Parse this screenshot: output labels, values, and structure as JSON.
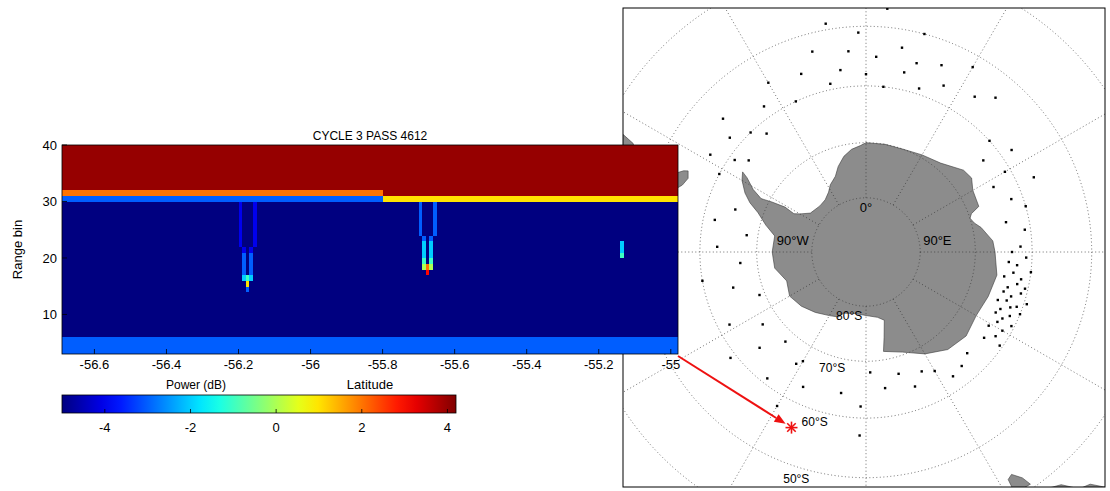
{
  "chart_data": [
    {
      "type": "heatmap",
      "title": "CYCLE 3 PASS 4612",
      "xlabel": "Latitude",
      "ylabel": "Range bin",
      "x_edges": [
        -56.69,
        -56.2,
        -56.19,
        -56.18,
        -56.17,
        -56.16,
        -56.15,
        -55.8,
        -55.7,
        -55.69,
        -55.68,
        -55.67,
        -55.66,
        -55.65,
        -55.15,
        -55.14,
        -55.13,
        -54.98
      ],
      "y_edges": [
        3,
        6,
        14,
        15,
        16,
        17,
        18,
        19,
        20,
        21,
        22,
        23,
        24,
        26,
        28,
        30,
        31,
        32,
        40
      ],
      "cells": [
        [
          -3,
          -3,
          -3,
          -3,
          -3,
          -3,
          -3,
          -3,
          -3,
          -3,
          -3,
          -3,
          -3,
          -3,
          -3,
          -3,
          -3
        ],
        [
          -5,
          -5,
          -5,
          -5,
          -5,
          -5,
          -5,
          -5,
          -5,
          -5,
          -5,
          -5,
          -5,
          -5,
          -5,
          -5,
          -5
        ],
        [
          -5,
          -5,
          -5,
          -3,
          -5,
          -5,
          -5,
          -5,
          -5,
          -5,
          -5,
          -5,
          -5,
          -5,
          -5,
          -5,
          -5
        ],
        [
          -5,
          -5,
          -5,
          1,
          -5,
          -5,
          -5,
          -5,
          -5,
          -5,
          -5,
          -5,
          -5,
          -5,
          -5,
          -5,
          -5
        ],
        [
          -5,
          -5,
          -2,
          -1,
          -2,
          -5,
          -5,
          -5,
          -5,
          -5,
          -5,
          -5,
          -5,
          -5,
          -5,
          -5,
          -5
        ],
        [
          -5,
          -5,
          -3,
          -5,
          -3,
          -5,
          -5,
          -5,
          -5,
          -5,
          3,
          -5,
          -5,
          -5,
          -5,
          -5,
          -5
        ],
        [
          -5,
          -5,
          -3,
          -5,
          -3,
          -5,
          -5,
          -5,
          -5,
          0,
          2,
          0,
          -5,
          -5,
          -5,
          -5,
          -5
        ],
        [
          -5,
          -5,
          -3,
          -5,
          -3,
          -5,
          -5,
          -5,
          -5,
          -1,
          -5,
          -1,
          -5,
          -5,
          -5,
          -5,
          -5
        ],
        [
          -5,
          -5,
          -3,
          -5,
          -3,
          -5,
          -5,
          -5,
          -5,
          -2,
          -5,
          -2,
          -5,
          -5,
          -5,
          -1,
          -5
        ],
        [
          -5,
          -5,
          -4,
          -5,
          -4,
          -5,
          -5,
          -5,
          -5,
          -2,
          -5,
          -2,
          -5,
          -5,
          -5,
          -2,
          -5
        ],
        [
          -5,
          -4,
          -5,
          -5,
          -5,
          -4,
          -5,
          -5,
          -5,
          -2,
          -5,
          -2,
          -5,
          -5,
          -5,
          -2,
          -5
        ],
        [
          -5,
          -4,
          -5,
          -5,
          -5,
          -4,
          -5,
          -5,
          -5,
          -3,
          -5,
          -3,
          -5,
          -5,
          -5,
          -5,
          -5
        ],
        [
          -5,
          -4,
          -5,
          -5,
          -5,
          -4,
          -5,
          -5,
          -3,
          -5,
          -5,
          -5,
          -3,
          -5,
          -5,
          -5,
          -5
        ],
        [
          -5,
          -4,
          -5,
          -5,
          -5,
          -4,
          -5,
          -5,
          -3,
          -5,
          -5,
          -5,
          -3,
          -5,
          -5,
          -5,
          -5
        ],
        [
          -5,
          -4,
          -5,
          -5,
          -5,
          -4,
          -5,
          -5,
          -3,
          -5,
          -5,
          -5,
          -3,
          -5,
          -5,
          -5,
          -5
        ],
        [
          -3,
          -3,
          -3,
          -3,
          -3,
          -3,
          -3,
          1,
          1,
          1,
          1,
          1,
          1,
          1,
          1,
          1,
          1
        ],
        [
          2,
          2,
          2,
          2,
          2,
          2,
          2,
          4,
          4,
          4,
          4,
          4,
          4,
          4,
          4,
          4,
          4
        ],
        [
          4,
          4,
          4,
          4,
          4,
          4,
          4,
          4,
          4,
          4,
          4,
          4,
          4,
          4,
          4,
          4,
          4
        ]
      ],
      "xlim": [
        -56.69,
        -54.98
      ],
      "ylim": [
        3,
        40
      ],
      "xticks": [
        -56.6,
        -56.4,
        -56.2,
        -56,
        -55.8,
        -55.6,
        -55.4,
        -55.2,
        -55
      ],
      "yticks": [
        10,
        20,
        30,
        40
      ],
      "colorbar": {
        "label": "Power (dB)",
        "range": [
          -5,
          4.2
        ],
        "ticks": [
          -4,
          -2,
          0,
          2,
          4
        ]
      }
    },
    {
      "type": "map",
      "lat_grid": [
        -80,
        -70,
        -60,
        -50,
        -40,
        -30
      ],
      "lon_grid": [
        -150,
        -120,
        -90,
        -60,
        -30,
        0,
        30,
        60,
        90,
        120,
        150,
        180
      ],
      "lon_ticks": [
        {
          "value": 0,
          "label": "0°"
        },
        {
          "value": -90,
          "label": "90°W"
        },
        {
          "value": 90,
          "label": "90°E"
        }
      ],
      "lat_ticks": [
        {
          "value": -80,
          "label": "80°S"
        },
        {
          "value": -70,
          "label": "70°S"
        },
        {
          "value": -60,
          "label": "60°S"
        },
        {
          "value": -50,
          "label": "50°S"
        }
      ],
      "land": [
        {
          "lon": [
            0,
            10,
            20,
            30,
            40,
            50,
            55,
            60,
            68,
            70,
            72,
            75,
            78,
            85,
            90,
            100,
            110,
            120,
            130,
            140,
            150,
            160,
            170,
            168,
            165,
            170,
            180,
            -170,
            -160,
            -157,
            -150,
            -140,
            -130,
            -120,
            -110,
            -100,
            -90,
            -80,
            -75,
            -70,
            -67,
            -64,
            -60,
            -57,
            -58,
            -61,
            -63,
            -62,
            -61,
            -62,
            -60,
            -55,
            -45,
            -38,
            -32,
            -28,
            -22,
            -18,
            -13,
            -8,
            -3
          ],
          "lat": [
            -70,
            -70,
            -70,
            -69.5,
            -68.8,
            -66.8,
            -66.5,
            -67.5,
            -67.8,
            -69.5,
            -70,
            -69.5,
            -68.5,
            -66.8,
            -66.5,
            -65.8,
            -66.3,
            -66.8,
            -66.2,
            -66.8,
            -68.5,
            -70.5,
            -71.5,
            -74,
            -77,
            -77.8,
            -78.3,
            -78.5,
            -78,
            -77,
            -76.5,
            -75.5,
            -74.5,
            -73.8,
            -74.5,
            -73,
            -72.8,
            -73,
            -71,
            -69,
            -67,
            -65.5,
            -64,
            -63.3,
            -64.5,
            -66.5,
            -68.5,
            -70.5,
            -73,
            -75,
            -76,
            -77.5,
            -78,
            -77.8,
            -77,
            -76,
            -75,
            -73.5,
            -72,
            -71,
            -70.5
          ]
        },
        {
          "lon": [
            -75,
            -75,
            -74.5,
            -72,
            -70,
            -67.5,
            -65.5,
            -66,
            -68.5,
            -69,
            -67.8,
            -66,
            -67,
            -65,
            -64,
            -62,
            -58,
            -56,
            -60,
            -72,
            -74
          ],
          "lat": [
            -45,
            -50,
            -52.5,
            -54,
            -55,
            -55.5,
            -55,
            -54.3,
            -52.5,
            -51.5,
            -50,
            -47.5,
            -46,
            -45,
            -42.5,
            -40,
            -38.5,
            -36,
            -30,
            -30,
            -40
          ]
        },
        {
          "lon": [
            115,
            118,
            123,
            129,
            134,
            136,
            138,
            140,
            143,
            146,
            148,
            150,
            153,
            150,
            120,
            114
          ],
          "lat": [
            -34,
            -35,
            -33.8,
            -31.6,
            -32.5,
            -35,
            -35.6,
            -37.8,
            -38.8,
            -39,
            -37.8,
            -37.5,
            -30,
            -25,
            -22,
            -25
          ]
        },
        {
          "lon": [
            144.7,
            148.3,
            148,
            146.8,
            145.3
          ],
          "lat": [
            -40.7,
            -40.9,
            -43.2,
            -43.6,
            -42.2
          ]
        },
        {
          "lon": [
            166.5,
            168.5,
            171,
            173,
            174.2,
            172.7,
            168.2
          ],
          "lat": [
            -46,
            -46.6,
            -44.8,
            -43.2,
            -41.6,
            -40.5,
            -44
          ]
        }
      ],
      "points": {
        "lon": [
          88,
          90,
          92,
          94,
          95,
          97,
          98,
          100,
          100,
          102,
          103,
          104,
          105,
          106,
          107,
          108,
          109,
          110,
          110,
          111,
          112,
          113,
          114,
          115,
          116,
          117,
          118,
          120,
          121,
          123,
          125,
          126,
          -35,
          -30,
          -25,
          -20,
          -15,
          -12,
          -8,
          -5,
          0,
          3,
          6,
          10,
          12,
          15,
          18,
          22,
          25,
          30,
          35,
          40,
          48,
          52,
          55,
          60,
          63,
          66,
          70,
          74,
          78,
          82,
          -62,
          -58,
          -55,
          -50,
          -47,
          -44,
          -52,
          -40,
          -170,
          -178,
          -150,
          -155,
          -150,
          -148,
          -142,
          -138,
          -132,
          -128,
          -125,
          -118,
          -112,
          -105,
          -100,
          -95,
          -88,
          -82,
          -78,
          -72,
          135,
          140,
          145,
          150,
          155,
          160,
          165,
          172,
          178,
          -178,
          -10,
          5,
          15,
          -2
        ],
        "lat": [
          -62,
          -63.5,
          -61,
          -64,
          -62.5,
          -60,
          -63,
          -61.5,
          -64.5,
          -62,
          -60.5,
          -63.5,
          -61,
          -64,
          -62.5,
          -59.5,
          -63,
          -61,
          -64.5,
          -62,
          -60,
          -63.5,
          -61.5,
          -64,
          -62.5,
          -60.5,
          -63,
          -61.5,
          -64,
          -62,
          -60.5,
          -63.5,
          -58,
          -55,
          -60,
          -56,
          -53,
          -59,
          -57,
          -54,
          -58,
          -55,
          -60,
          -53,
          -57,
          -55,
          -59,
          -54,
          -57,
          -52,
          -56,
          -54,
          -60,
          -63,
          -58,
          -61,
          -64,
          -57,
          -62,
          -60,
          -64,
          -61,
          -60,
          -57,
          -61,
          -58,
          -55,
          -60,
          -63,
          -62,
          -64,
          -57,
          -67,
          -63,
          -58,
          -66,
          -61,
          -68,
          -64,
          -59,
          -67,
          -62,
          -69,
          -65,
          -60,
          -67,
          -63,
          -68,
          -62,
          -65,
          -64,
          -63,
          -62.5,
          -65,
          -66,
          -64,
          -67,
          -65,
          -68,
          -62,
          -49,
          -47,
          -50,
          -51
        ]
      },
      "highlight": {
        "lon": -157,
        "lat": -55.8
      }
    }
  ]
}
